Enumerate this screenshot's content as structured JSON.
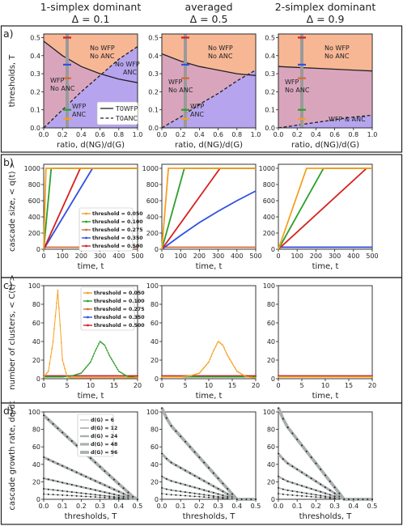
{
  "headers": [
    {
      "line1": "1-simplex dominant",
      "line2": "Δ = 0.1"
    },
    {
      "line1": "averaged",
      "line2": "Δ = 0.5"
    },
    {
      "line1": "2-simplex dominant",
      "line2": "Δ = 0.9"
    }
  ],
  "colors": {
    "region_top": "#f7b795",
    "region_mid": "#d9a5bd",
    "region_bottom": "#b6a4ee",
    "thresholds": {
      "0.050": "#f5a020",
      "0.100": "#2ca02c",
      "0.275": "#d46a3a",
      "0.350": "#3050e0",
      "0.500": "#d62020"
    },
    "growth": "#a9aeae"
  },
  "panel_a": {
    "label": "a)",
    "ylabel": "thresholds, T",
    "xlabel": "ratio, d(NG)/d(G)",
    "xticks": [
      "0.0",
      "0.2",
      "0.4",
      "0.6",
      "0.8",
      "1.0"
    ],
    "yticks": [
      "0.0",
      "0.1",
      "0.2",
      "0.3",
      "0.4",
      "0.5"
    ],
    "legend": [
      "T0WFP",
      "T0ANC"
    ],
    "regions": [
      {
        "top": "No WFP",
        "bottom": "No ANC",
        "wfp": "WFP",
        "wfp_noanc": "No ANC",
        "wfpanc_top": "WFP",
        "wfpanc_bottom": "ANC",
        "right_top": "No WFP",
        "right_bottom": "ANC"
      },
      {
        "top": "No WFP",
        "bottom": "No ANC",
        "wfp": "WFP",
        "wfp_noanc": "No ANC",
        "wfpanc_top": "WFP",
        "wfpanc_bottom": "ANC"
      },
      {
        "top": "No WFP",
        "bottom": "No ANC",
        "wfp": "WFP",
        "wfp_noanc": "No ANC",
        "wfpanc": "WFP & ANC"
      }
    ]
  },
  "panel_b": {
    "label": "b)",
    "ylabel": "cascade size, < q(t) >",
    "xlabel": "time, t",
    "xticks": [
      "0",
      "100",
      "200",
      "300",
      "400",
      "500"
    ],
    "yticks": [
      "0",
      "200",
      "400",
      "600",
      "800",
      "1000"
    ]
  },
  "panel_c": {
    "label": "c)",
    "ylabel": "number of clusters, < C(t) >",
    "xlabel": "time, t",
    "xticks": [
      "0",
      "5",
      "10",
      "15",
      "20"
    ],
    "yticks": [
      "0",
      "20",
      "40",
      "60",
      "80",
      "100"
    ]
  },
  "panel_d": {
    "label": "d)",
    "ylabel": "cascade growth rate, dq/dt",
    "xlabel": "thresholds, T",
    "xticks": [
      "0.0",
      "0.1",
      "0.2",
      "0.3",
      "0.4",
      "0.5"
    ],
    "yticks": [
      "0",
      "20",
      "40",
      "60",
      "80",
      "100"
    ],
    "legend": [
      "d(G) = 6",
      "d(G) = 12",
      "d(G) = 24",
      "d(G) = 48",
      "d(G) = 96"
    ]
  },
  "threshold_legend": [
    "threshold = 0.050",
    "threshold = 0.100",
    "threshold = 0.275",
    "threshold = 0.350",
    "threshold = 0.500"
  ],
  "chart_data": [
    {
      "type": "line",
      "panel": "a",
      "x_range": [
        0,
        1
      ],
      "y_range": [
        0,
        0.52
      ],
      "wfp_curves": [
        {
          "x": [
            0,
            0.2,
            0.4,
            0.6,
            0.8,
            1.0
          ],
          "y": [
            0.48,
            0.4,
            0.34,
            0.3,
            0.27,
            0.25
          ]
        },
        {
          "x": [
            0,
            0.2,
            0.4,
            0.6,
            0.8,
            1.0
          ],
          "y": [
            0.41,
            0.37,
            0.34,
            0.32,
            0.3,
            0.29
          ]
        },
        {
          "x": [
            0,
            0.2,
            0.4,
            0.6,
            0.8,
            1.0
          ],
          "y": [
            0.34,
            0.335,
            0.33,
            0.325,
            0.32,
            0.315
          ]
        }
      ],
      "anc_curves": [
        {
          "x": [
            0,
            0.2,
            0.4,
            0.6,
            0.8,
            1.0
          ],
          "y": [
            0.0,
            0.1,
            0.2,
            0.29,
            0.38,
            0.45
          ]
        },
        {
          "x": [
            0,
            0.2,
            0.4,
            0.6,
            0.8,
            1.0
          ],
          "y": [
            0.0,
            0.06,
            0.13,
            0.19,
            0.26,
            0.32
          ]
        },
        {
          "x": [
            0,
            0.2,
            0.4,
            0.6,
            0.8,
            1.0
          ],
          "y": [
            0.0,
            0.015,
            0.03,
            0.045,
            0.06,
            0.07
          ]
        }
      ],
      "marker_x": 0.25,
      "marker_thresholds": [
        0.05,
        0.1,
        0.275,
        0.35,
        0.5
      ]
    },
    {
      "type": "line",
      "panel": "b",
      "x_range": [
        0,
        500
      ],
      "y_range": [
        0,
        1050
      ],
      "series": [
        [
          {
            "threshold": "0.050",
            "x": [
              0,
              12,
              500
            ],
            "y": [
              0,
              1000,
              1000
            ]
          },
          {
            "threshold": "0.100",
            "x": [
              0,
              40,
              500
            ],
            "y": [
              0,
              1000,
              1000
            ]
          },
          {
            "threshold": "0.275",
            "x": [
              0,
              500
            ],
            "y": [
              25,
              25
            ]
          },
          {
            "threshold": "0.350",
            "x": [
              0,
              260,
              500
            ],
            "y": [
              0,
              1000,
              1000
            ]
          },
          {
            "threshold": "0.500",
            "x": [
              0,
              195,
              500
            ],
            "y": [
              0,
              1000,
              1000
            ]
          }
        ],
        [
          {
            "threshold": "0.050",
            "x": [
              0,
              35,
              500
            ],
            "y": [
              0,
              1000,
              1000
            ]
          },
          {
            "threshold": "0.100",
            "x": [
              0,
              120,
              500
            ],
            "y": [
              0,
              1000,
              1000
            ]
          },
          {
            "threshold": "0.275",
            "x": [
              0,
              500
            ],
            "y": [
              25,
              25
            ]
          },
          {
            "threshold": "0.350",
            "x": [
              0,
              100,
              200,
              300,
              400,
              500
            ],
            "y": [
              0,
              170,
              330,
              470,
              600,
              720
            ]
          },
          {
            "threshold": "0.500",
            "x": [
              0,
              310,
              500
            ],
            "y": [
              0,
              1000,
              1000
            ]
          }
        ],
        [
          {
            "threshold": "0.050",
            "x": [
              0,
              150,
              500
            ],
            "y": [
              0,
              1000,
              1000
            ]
          },
          {
            "threshold": "0.100",
            "x": [
              0,
              240,
              500
            ],
            "y": [
              0,
              1000,
              1000
            ]
          },
          {
            "threshold": "0.275",
            "x": [
              0,
              500
            ],
            "y": [
              25,
              25
            ]
          },
          {
            "threshold": "0.350",
            "x": [
              0,
              500
            ],
            "y": [
              25,
              25
            ]
          },
          {
            "threshold": "0.500",
            "x": [
              0,
              470,
              500
            ],
            "y": [
              0,
              1000,
              1000
            ]
          }
        ]
      ]
    },
    {
      "type": "line",
      "panel": "c",
      "x_range": [
        0,
        20
      ],
      "y_range": [
        0,
        100
      ],
      "series": [
        [
          {
            "threshold": "0.050",
            "x": [
              0,
              1,
              2,
              3,
              4,
              5,
              6,
              20
            ],
            "y": [
              2,
              8,
              40,
              95,
              20,
              2,
              1,
              1
            ]
          },
          {
            "threshold": "0.100",
            "x": [
              0,
              4,
              6,
              8,
              10,
              11,
              12,
              13,
              14,
              16,
              18,
              20
            ],
            "y": [
              2,
              2,
              3,
              6,
              18,
              30,
              40,
              36,
              25,
              8,
              2,
              1
            ]
          },
          {
            "threshold": "0.275",
            "x": [
              0,
              20
            ],
            "y": [
              3,
              3
            ]
          },
          {
            "threshold": "0.350",
            "x": [
              0,
              20
            ],
            "y": [
              3,
              3
            ]
          },
          {
            "threshold": "0.500",
            "x": [
              0,
              20
            ],
            "y": [
              3,
              3
            ]
          }
        ],
        [
          {
            "threshold": "0.050",
            "x": [
              0,
              4,
              6,
              8,
              10,
              11,
              12,
              13,
              14,
              16,
              18,
              20
            ],
            "y": [
              2,
              2,
              3,
              6,
              18,
              30,
              40,
              36,
              25,
              8,
              2,
              1
            ]
          },
          {
            "threshold": "0.100",
            "x": [
              0,
              20
            ],
            "y": [
              2,
              2
            ]
          },
          {
            "threshold": "0.275",
            "x": [
              0,
              20
            ],
            "y": [
              3,
              3
            ]
          },
          {
            "threshold": "0.350",
            "x": [
              0,
              20
            ],
            "y": [
              3,
              3
            ]
          },
          {
            "threshold": "0.500",
            "x": [
              0,
              20
            ],
            "y": [
              3,
              3
            ]
          }
        ],
        [
          {
            "threshold": "0.050",
            "x": [
              0,
              20
            ],
            "y": [
              2,
              2
            ]
          },
          {
            "threshold": "0.100",
            "x": [
              0,
              20
            ],
            "y": [
              2,
              2
            ]
          },
          {
            "threshold": "0.275",
            "x": [
              0,
              20
            ],
            "y": [
              3,
              3
            ]
          },
          {
            "threshold": "0.350",
            "x": [
              0,
              20
            ],
            "y": [
              3,
              3
            ]
          },
          {
            "threshold": "0.500",
            "x": [
              0,
              20
            ],
            "y": [
              3,
              3
            ]
          }
        ]
      ]
    },
    {
      "type": "line",
      "panel": "d",
      "x_range": [
        0,
        0.5
      ],
      "y_range": [
        0,
        100
      ],
      "degrees": [
        6,
        12,
        24,
        48,
        96
      ],
      "cutoffs": [
        0.5,
        0.38,
        0.35
      ],
      "endpoints": [
        0.49,
        0.4,
        0.35
      ]
    }
  ]
}
